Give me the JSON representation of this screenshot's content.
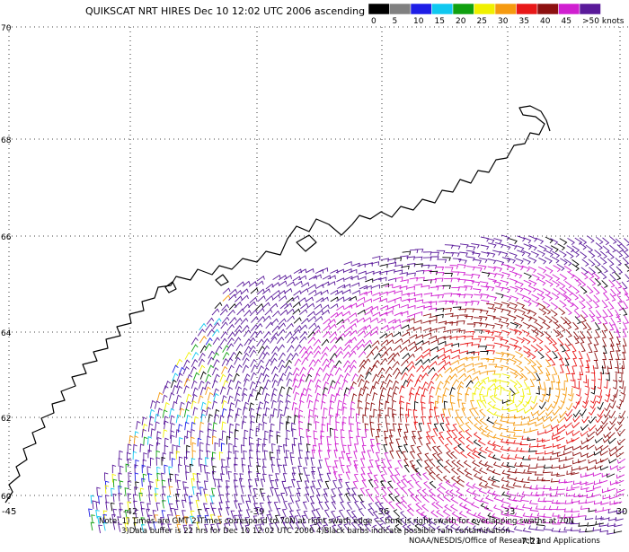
{
  "header": {
    "title": "QUIKSCAT NRT HIRES Dec 10 12:02 UTC 2006 ascending",
    "legend": {
      "labels": [
        "0",
        "5",
        "10",
        "15",
        "20",
        "25",
        "30",
        "35",
        "40",
        "45",
        ">50 knots"
      ],
      "colors": [
        "#000000",
        "#808080",
        "#1e1ee6",
        "#10c8f0",
        "#10a010",
        "#f0f000",
        "#f59a10",
        "#e81818",
        "#8c1010",
        "#d020d0",
        "#5a1a9a"
      ]
    }
  },
  "map": {
    "lat_labels": [
      "70",
      "68",
      "66",
      "64",
      "62",
      "60"
    ],
    "lon_labels": [
      "-45",
      "-42",
      "-39",
      "-36",
      "-33",
      "-30"
    ],
    "time_label": "7:21"
  },
  "notes": [
    "Note: 1) Times are GMT 2)Times correspond to 70N at right swath edge — time is right swath for overlapping swaths at 70N",
    "3)Data buffer is 22 hrs for Dec 10 12:02 UTC 2006 4)Black barbs indicate possible rain contamination",
    "NOAA/NESDIS/Office of Research and Applications"
  ]
}
